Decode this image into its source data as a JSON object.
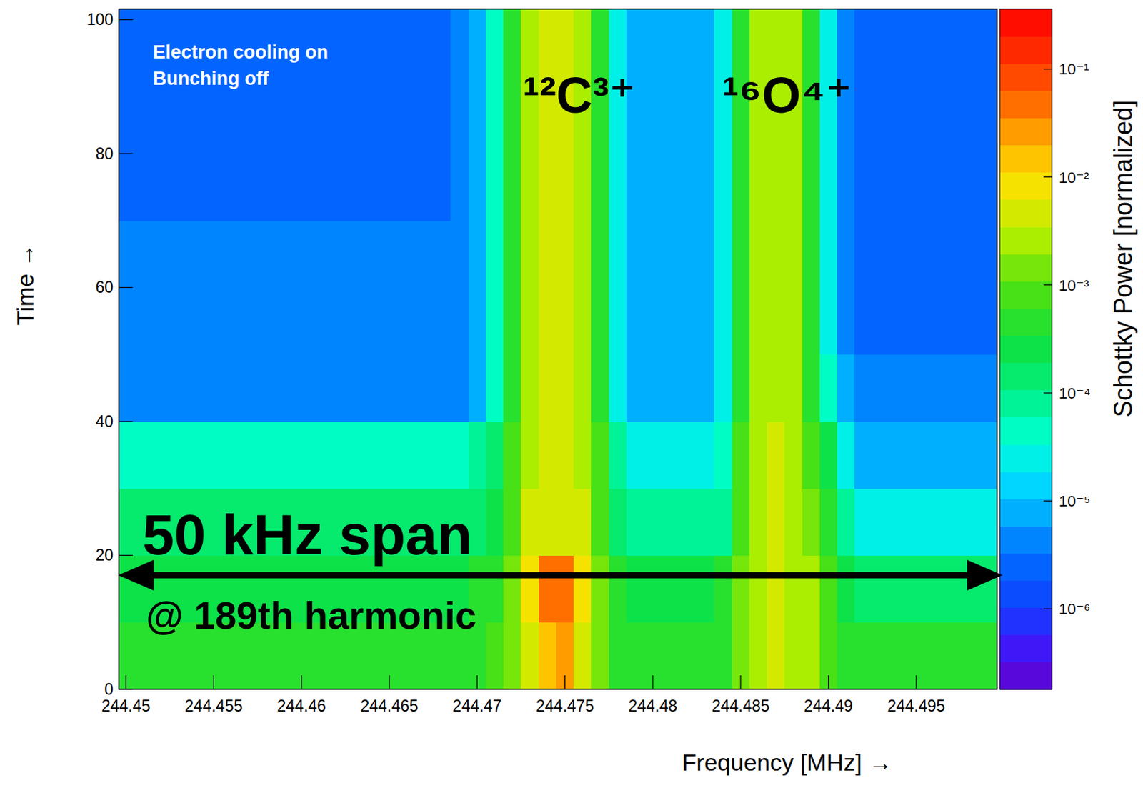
{
  "chart_data": {
    "type": "heatmap",
    "x_label": "Frequency [MHz] →",
    "y_label": "Time →",
    "x": [
      244.45,
      244.451,
      244.452,
      244.453,
      244.454,
      244.455,
      244.456,
      244.457,
      244.458,
      244.459,
      244.46,
      244.461,
      244.462,
      244.463,
      244.464,
      244.465,
      244.466,
      244.467,
      244.468,
      244.469,
      244.47,
      244.471,
      244.472,
      244.473,
      244.474,
      244.475,
      244.476,
      244.477,
      244.478,
      244.479,
      244.48,
      244.481,
      244.482,
      244.483,
      244.484,
      244.485,
      244.486,
      244.487,
      244.488,
      244.489,
      244.49,
      244.491,
      244.492,
      244.493,
      244.494,
      244.495,
      244.496,
      244.497,
      244.498,
      244.499
    ],
    "y": [
      5,
      15,
      25,
      35,
      45,
      55,
      65,
      75,
      85,
      95
    ],
    "cells": [
      [
        0.0005,
        0.0005,
        0.0005,
        0.0005,
        0.0005,
        0.0005,
        0.0005,
        0.0005,
        0.0005,
        0.0005,
        0.0005,
        0.0005,
        0.0005,
        0.0005,
        0.0005,
        0.0005,
        0.0005,
        0.0005,
        0.0005,
        0.0005,
        0.0006,
        0.0008,
        0.0015,
        0.005,
        0.015,
        0.02,
        0.005,
        0.0015,
        0.0006,
        0.0005,
        0.0005,
        0.0005,
        0.0005,
        0.0005,
        0.0006,
        0.0015,
        0.003,
        0.004,
        0.003,
        0.002,
        0.001,
        0.0006,
        0.0004,
        0.0004,
        0.0004,
        0.0004,
        0.0004,
        0.0004,
        0.0004,
        0.0004
      ],
      [
        0.0003,
        0.0003,
        0.0003,
        0.0003,
        0.0003,
        0.0003,
        0.0003,
        0.0003,
        0.0003,
        0.0003,
        0.0003,
        0.0003,
        0.0003,
        0.0003,
        0.0003,
        0.0003,
        0.0003,
        0.0003,
        0.0003,
        0.0003,
        0.0004,
        0.0006,
        0.0015,
        0.01,
        0.05,
        0.06,
        0.01,
        0.0015,
        0.0004,
        0.0003,
        0.0003,
        0.0003,
        0.0003,
        0.0003,
        0.0004,
        0.0015,
        0.003,
        0.004,
        0.003,
        0.002,
        0.001,
        0.0003,
        0.00015,
        0.00015,
        0.00015,
        0.00015,
        0.00015,
        0.00015,
        0.00015,
        0.00015
      ],
      [
        0.00012,
        0.00012,
        0.00012,
        0.00012,
        0.00012,
        0.00012,
        0.00012,
        0.00012,
        0.00012,
        0.00012,
        0.00012,
        0.00012,
        0.00012,
        0.00012,
        0.00012,
        0.00012,
        0.00012,
        0.00012,
        0.00012,
        0.00012,
        0.00015,
        0.0003,
        0.001,
        0.004,
        0.006,
        0.006,
        0.004,
        0.001,
        0.00015,
        6e-05,
        6e-05,
        6e-05,
        6e-05,
        6e-05,
        0.0001,
        0.001,
        0.003,
        0.0035,
        0.0025,
        0.0015,
        0.0006,
        8e-05,
        2e-05,
        2e-05,
        2e-05,
        2e-05,
        2e-05,
        2e-05,
        2e-05,
        2e-05
      ],
      [
        5e-05,
        5e-05,
        5e-05,
        5e-05,
        5e-05,
        5e-05,
        5e-05,
        5e-05,
        5e-05,
        5e-05,
        5e-05,
        5e-05,
        5e-05,
        5e-05,
        5e-05,
        5e-05,
        5e-05,
        5e-05,
        5e-05,
        5e-05,
        6e-05,
        0.00015,
        0.0008,
        0.003,
        0.005,
        0.005,
        0.003,
        0.0008,
        6e-05,
        2e-05,
        2e-05,
        2e-05,
        2e-05,
        2e-05,
        5e-05,
        0.0008,
        0.003,
        0.0035,
        0.0025,
        0.001,
        0.0002,
        2e-05,
        6e-06,
        6e-06,
        6e-06,
        6e-06,
        6e-06,
        6e-06,
        6e-06,
        6e-06
      ],
      [
        5e-06,
        5e-06,
        5e-06,
        5e-06,
        5e-06,
        5e-06,
        5e-06,
        5e-06,
        5e-06,
        5e-06,
        5e-06,
        5e-06,
        5e-06,
        5e-06,
        5e-06,
        5e-06,
        5e-06,
        5e-06,
        5e-06,
        5e-06,
        1e-05,
        4e-05,
        0.0006,
        0.0025,
        0.004,
        0.004,
        0.0025,
        0.0006,
        2e-05,
        1e-05,
        1e-05,
        1e-05,
        1e-05,
        1e-05,
        3e-05,
        0.0006,
        0.0025,
        0.003,
        0.002,
        0.0006,
        5e-05,
        8e-06,
        4e-06,
        4e-06,
        4e-06,
        4e-06,
        4e-06,
        4e-06,
        4e-06,
        4e-06
      ],
      [
        4e-06,
        4e-06,
        4e-06,
        4e-06,
        4e-06,
        4e-06,
        4e-06,
        4e-06,
        4e-06,
        4e-06,
        4e-06,
        4e-06,
        4e-06,
        4e-06,
        4e-06,
        4e-06,
        4e-06,
        4e-06,
        4e-06,
        5e-06,
        1e-05,
        4e-05,
        0.0006,
        0.0025,
        0.004,
        0.004,
        0.0025,
        0.0006,
        2e-05,
        8e-06,
        8e-06,
        8e-06,
        8e-06,
        8e-06,
        3e-05,
        0.0006,
        0.0025,
        0.003,
        0.002,
        0.0005,
        2e-05,
        5e-06,
        3e-06,
        3e-06,
        3e-06,
        3e-06,
        3e-06,
        3e-06,
        3e-06,
        3e-06
      ],
      [
        4e-06,
        4e-06,
        4e-06,
        4e-06,
        4e-06,
        4e-06,
        4e-06,
        4e-06,
        4e-06,
        4e-06,
        4e-06,
        4e-06,
        4e-06,
        4e-06,
        4e-06,
        4e-06,
        4e-06,
        4e-06,
        4e-06,
        5e-06,
        1e-05,
        4e-05,
        0.0006,
        0.0025,
        0.004,
        0.004,
        0.0025,
        0.0006,
        2e-05,
        8e-06,
        8e-06,
        8e-06,
        8e-06,
        8e-06,
        3e-05,
        0.0006,
        0.0025,
        0.003,
        0.002,
        0.0005,
        2e-05,
        5e-06,
        3e-06,
        3e-06,
        3e-06,
        3e-06,
        3e-06,
        3e-06,
        3e-06,
        3e-06
      ],
      [
        3e-06,
        3e-06,
        3e-06,
        3e-06,
        3e-06,
        3e-06,
        3e-06,
        3e-06,
        3e-06,
        3e-06,
        3e-06,
        3e-06,
        3e-06,
        3e-06,
        3e-06,
        3e-06,
        3e-06,
        3e-06,
        3e-06,
        5e-06,
        1e-05,
        4e-05,
        0.0006,
        0.0025,
        0.004,
        0.004,
        0.0025,
        0.0006,
        2e-05,
        7e-06,
        7e-06,
        7e-06,
        7e-06,
        7e-06,
        3e-05,
        0.0006,
        0.0025,
        0.003,
        0.002,
        0.0005,
        2e-05,
        5e-06,
        3e-06,
        3e-06,
        3e-06,
        3e-06,
        3e-06,
        3e-06,
        3e-06,
        3e-06
      ],
      [
        3e-06,
        3e-06,
        3e-06,
        3e-06,
        3e-06,
        3e-06,
        3e-06,
        3e-06,
        3e-06,
        3e-06,
        3e-06,
        3e-06,
        3e-06,
        3e-06,
        3e-06,
        3e-06,
        3e-06,
        3e-06,
        3e-06,
        5e-06,
        1e-05,
        4e-05,
        0.0006,
        0.0025,
        0.004,
        0.004,
        0.0025,
        0.0006,
        2e-05,
        7e-06,
        7e-06,
        7e-06,
        7e-06,
        7e-06,
        3e-05,
        0.0006,
        0.0025,
        0.003,
        0.002,
        0.0005,
        2e-05,
        5e-06,
        3e-06,
        3e-06,
        3e-06,
        3e-06,
        3e-06,
        3e-06,
        3e-06,
        3e-06
      ],
      [
        3e-06,
        3e-06,
        3e-06,
        3e-06,
        3e-06,
        3e-06,
        3e-06,
        3e-06,
        3e-06,
        3e-06,
        3e-06,
        3e-06,
        3e-06,
        3e-06,
        3e-06,
        3e-06,
        3e-06,
        3e-06,
        3e-06,
        5e-06,
        1e-05,
        4e-05,
        0.0006,
        0.0025,
        0.004,
        0.004,
        0.0025,
        0.0006,
        2e-05,
        7e-06,
        7e-06,
        7e-06,
        7e-06,
        7e-06,
        3e-05,
        0.0006,
        0.0025,
        0.003,
        0.002,
        0.0005,
        2e-05,
        5e-06,
        3e-06,
        3e-06,
        3e-06,
        3e-06,
        3e-06,
        3e-06,
        3e-06,
        3e-06
      ]
    ],
    "xlim": [
      244.4496,
      244.4996
    ],
    "ylim": [
      0,
      101.6
    ],
    "xticks": [
      244.45,
      244.455,
      244.46,
      244.465,
      244.47,
      244.475,
      244.48,
      244.485,
      244.49,
      244.495
    ],
    "yticks": [
      0,
      20,
      40,
      60,
      80,
      100
    ],
    "grid": false,
    "colorbar": {
      "label": "Schottky Power [normalized]",
      "range": [
        1.8e-07,
        0.36
      ],
      "log": true,
      "ticks": [
        {
          "value": 1e-06,
          "label": "10⁻⁶"
        },
        {
          "value": 1e-05,
          "label": "10⁻⁵"
        },
        {
          "value": 0.0001,
          "label": "10⁻⁴"
        },
        {
          "value": 0.001,
          "label": "10⁻³"
        },
        {
          "value": 0.01,
          "label": "10⁻²"
        },
        {
          "value": 0.1,
          "label": "10⁻¹"
        }
      ]
    },
    "annotations": [
      "Electron cooling on",
      "Bunching off",
      "¹²C³⁺",
      "¹⁶O⁴⁺",
      "50 kHz span",
      "@ 189th harmonic"
    ]
  }
}
